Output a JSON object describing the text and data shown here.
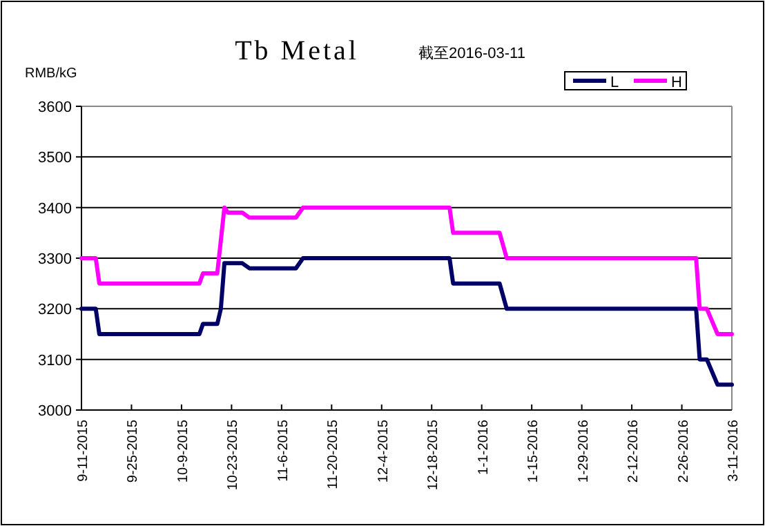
{
  "chart_data": {
    "type": "line",
    "title": "Tb Metal",
    "subtitle": "截至2016-03-11",
    "ylabel": "RMB/kG",
    "xlim": [
      "2015-09-11",
      "2016-03-11"
    ],
    "xticks": [
      {
        "value": "2015-09-11",
        "label": "9-11-2015"
      },
      {
        "value": "2015-09-25",
        "label": "9-25-2015"
      },
      {
        "value": "2015-10-09",
        "label": "10-9-2015"
      },
      {
        "value": "2015-10-23",
        "label": "10-23-2015"
      },
      {
        "value": "2015-11-06",
        "label": "11-6-2015"
      },
      {
        "value": "2015-11-20",
        "label": "11-20-2015"
      },
      {
        "value": "2015-12-04",
        "label": "12-4-2015"
      },
      {
        "value": "2015-12-18",
        "label": "12-18-2015"
      },
      {
        "value": "2016-01-01",
        "label": "1-1-2016"
      },
      {
        "value": "2016-01-15",
        "label": "1-15-2016"
      },
      {
        "value": "2016-01-29",
        "label": "1-29-2016"
      },
      {
        "value": "2016-02-12",
        "label": "2-12-2016"
      },
      {
        "value": "2016-02-26",
        "label": "2-26-2016"
      },
      {
        "value": "2016-03-11",
        "label": "3-11-2016"
      }
    ],
    "ylim": [
      3000,
      3600
    ],
    "yticks": [
      3000,
      3100,
      3200,
      3300,
      3400,
      3500,
      3600
    ],
    "grid": "y",
    "legend": "top right",
    "series": [
      {
        "name": "L",
        "color": "#000066",
        "x": [
          "2015-09-11",
          "2015-09-15",
          "2015-09-16",
          "2015-10-14",
          "2015-10-15",
          "2015-10-19",
          "2015-10-20",
          "2015-10-21",
          "2015-10-26",
          "2015-10-28",
          "2015-11-10",
          "2015-11-12",
          "2015-12-23",
          "2015-12-24",
          "2016-01-06",
          "2016-01-08",
          "2016-03-01",
          "2016-03-02",
          "2016-03-04",
          "2016-03-07",
          "2016-03-11"
        ],
        "values": [
          3200,
          3200,
          3150,
          3150,
          3170,
          3170,
          3200,
          3290,
          3290,
          3280,
          3280,
          3300,
          3300,
          3250,
          3250,
          3200,
          3200,
          3100,
          3100,
          3050,
          3050
        ]
      },
      {
        "name": "H",
        "color": "#ff00ff",
        "x": [
          "2015-09-11",
          "2015-09-15",
          "2015-09-16",
          "2015-10-14",
          "2015-10-15",
          "2015-10-19",
          "2015-10-21",
          "2015-10-22",
          "2015-10-26",
          "2015-10-28",
          "2015-11-10",
          "2015-11-12",
          "2015-12-23",
          "2015-12-24",
          "2016-01-06",
          "2016-01-08",
          "2016-03-01",
          "2016-03-02",
          "2016-03-04",
          "2016-03-07",
          "2016-03-11"
        ],
        "values": [
          3300,
          3300,
          3250,
          3250,
          3270,
          3270,
          3400,
          3390,
          3390,
          3380,
          3380,
          3400,
          3400,
          3350,
          3350,
          3300,
          3300,
          3200,
          3200,
          3150,
          3150
        ]
      }
    ]
  }
}
